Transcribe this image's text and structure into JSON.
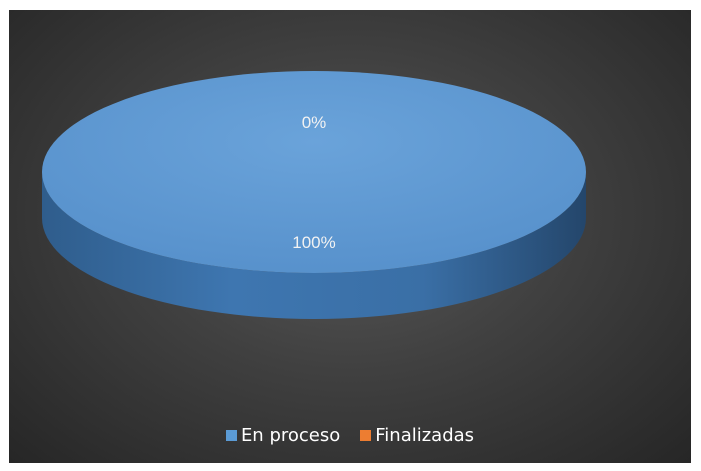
{
  "chart_data": {
    "type": "pie",
    "title": "",
    "slices": [
      {
        "name": "En proceso",
        "value": 100,
        "label": "100%",
        "color": "#5b9bd5"
      },
      {
        "name": "Finalizadas",
        "value": 0,
        "label": "0%",
        "color": "#ed7d31"
      }
    ],
    "legend_position": "bottom",
    "style": "3d",
    "background": "#404040"
  }
}
